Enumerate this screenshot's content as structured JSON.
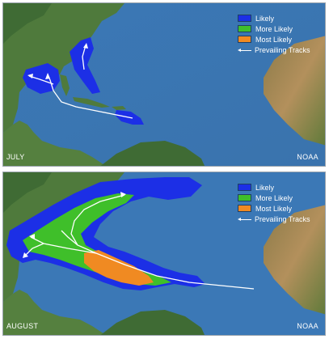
{
  "panels": [
    {
      "month": "JULY",
      "credit": "NOAA",
      "legend": {
        "entries": [
          {
            "label": "Likely",
            "color": "#1c2fe6"
          },
          {
            "label": "More Likely",
            "color": "#3fbf2a"
          },
          {
            "label": "Most Likely",
            "color": "#f08a22"
          }
        ],
        "tracks_label": "Prevailing Tracks"
      }
    },
    {
      "month": "AUGUST",
      "credit": "NOAA",
      "legend": {
        "entries": [
          {
            "label": "Likely",
            "color": "#1c2fe6"
          },
          {
            "label": "More Likely",
            "color": "#3fbf2a"
          },
          {
            "label": "Most Likely",
            "color": "#f08a22"
          }
        ],
        "tracks_label": "Prevailing Tracks"
      }
    }
  ],
  "colors": {
    "ocean": "#3c79b5",
    "land_green": "#4f7a3c",
    "land_dark": "#2f5a2c",
    "land_desert": "#b08a55",
    "track": "#ffffff"
  }
}
